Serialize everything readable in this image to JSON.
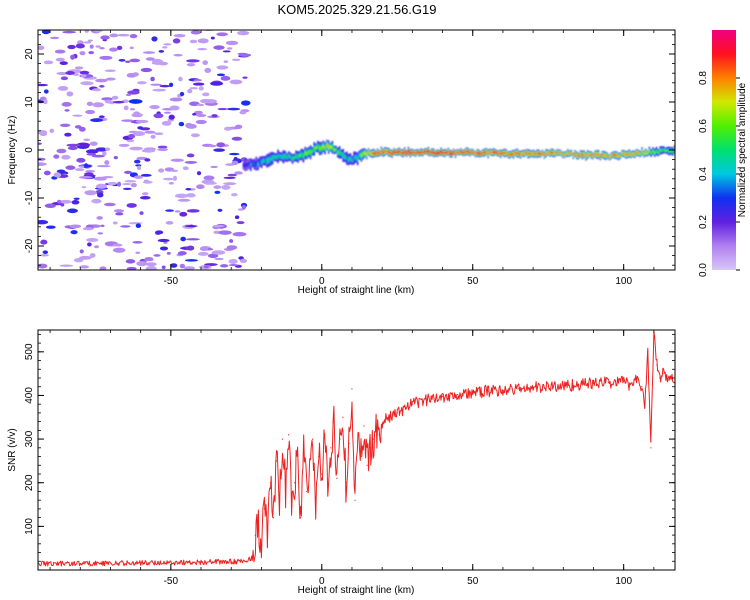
{
  "title": "KOM5.2025.329.21.56.G19",
  "chart_data": [
    {
      "type": "heatmap",
      "name": "spectrogram",
      "xlabel": "Height of straight line (km)",
      "ylabel": "Frequency (Hz)",
      "xlim": [
        -94,
        117
      ],
      "ylim": [
        -25,
        25
      ],
      "xticks": [
        -50,
        0,
        50,
        100
      ],
      "xtick_labels": [
        "-50",
        "0",
        "50",
        "100"
      ],
      "yticks": [
        -20,
        -10,
        0,
        10,
        20
      ],
      "ytick_labels": [
        "-20",
        "-10",
        "0",
        "10",
        "20"
      ],
      "colorbar": {
        "label": "Normalized spectral amplitude",
        "range": [
          0,
          1
        ],
        "ticks": [
          0.0,
          0.2,
          0.4,
          0.6,
          0.8
        ],
        "tick_labels": [
          "0.0",
          "0.2",
          "0.4",
          "0.6",
          "0.8"
        ],
        "colors": [
          "#d8c8f8",
          "#b080f0",
          "#6020e0",
          "#1030f0",
          "#00c8e0",
          "#00e070",
          "#50f000",
          "#d0e800",
          "#ff8000",
          "#ff1020",
          "#f00080"
        ]
      },
      "ridge": {
        "description_values": "dominant frequency (Hz) vs height (km)",
        "x": [
          -26,
          -22,
          -18,
          -14,
          -10,
          -6,
          -2,
          2,
          6,
          8,
          10,
          12,
          14,
          18,
          25,
          40,
          60,
          80,
          95,
          105,
          110,
          117
        ],
        "y": [
          -3.2,
          -3.0,
          -2.0,
          -1.5,
          -1.6,
          -1.0,
          0.4,
          0.8,
          -0.5,
          -1.5,
          -2.0,
          -1.5,
          -0.8,
          -0.5,
          -0.5,
          -0.5,
          -0.7,
          -0.8,
          -1.3,
          -0.6,
          -0.3,
          -0.1
        ],
        "amplitude": [
          0.25,
          0.35,
          0.45,
          0.5,
          0.5,
          0.55,
          0.6,
          0.7,
          0.5,
          0.45,
          0.4,
          0.5,
          0.7,
          0.85,
          0.9,
          0.92,
          0.85,
          0.82,
          0.8,
          0.75,
          0.6,
          0.55
        ]
      },
      "noise_region": {
        "x_range": [
          -94,
          -25
        ],
        "y_range": [
          -25,
          25
        ],
        "amplitude": [
          0.05,
          0.3
        ]
      }
    },
    {
      "type": "line",
      "name": "snr",
      "xlabel": "Height of straight line (km)",
      "ylabel": "SNR (v/v)",
      "xlim": [
        -94,
        117
      ],
      "ylim": [
        0,
        550
      ],
      "xticks": [
        -50,
        0,
        50,
        100
      ],
      "xtick_labels": [
        "-50",
        "0",
        "50",
        "100"
      ],
      "yticks": [
        100,
        200,
        300,
        400,
        500
      ],
      "ytick_labels": [
        "100",
        "200",
        "300",
        "400",
        "500"
      ],
      "color": "#ee2020",
      "series": [
        {
          "name": "SNR",
          "x": [
            -94,
            -80,
            -60,
            -40,
            -30,
            -25,
            -23,
            -22,
            -21,
            -20,
            -19,
            -18,
            -17,
            -16,
            -15,
            -14,
            -13,
            -12,
            -11,
            -10,
            -9,
            -8,
            -7,
            -6,
            -5,
            -4,
            -3,
            -2,
            -1,
            0,
            1,
            2,
            3,
            4,
            5,
            6,
            7,
            8,
            9,
            10,
            11,
            12,
            13,
            14,
            15,
            16,
            17,
            18,
            19,
            20,
            22,
            25,
            28,
            30,
            35,
            40,
            45,
            50,
            55,
            60,
            65,
            70,
            75,
            80,
            85,
            90,
            95,
            100,
            102,
            104,
            106,
            107,
            108,
            109,
            110,
            111,
            112,
            113,
            115,
            117
          ],
          "y": [
            15,
            15,
            16,
            18,
            19,
            20,
            30,
            80,
            100,
            60,
            140,
            90,
            200,
            120,
            250,
            160,
            300,
            180,
            310,
            150,
            200,
            260,
            120,
            280,
            180,
            250,
            300,
            140,
            260,
            220,
            310,
            190,
            280,
            340,
            210,
            300,
            350,
            200,
            290,
            415,
            160,
            310,
            260,
            330,
            240,
            280,
            300,
            320,
            310,
            335,
            350,
            360,
            372,
            380,
            390,
            398,
            402,
            405,
            410,
            412,
            415,
            418,
            420,
            422,
            425,
            428,
            430,
            432,
            425,
            440,
            420,
            380,
            500,
            280,
            550,
            470,
            440,
            450,
            435,
            440
          ]
        }
      ]
    }
  ]
}
